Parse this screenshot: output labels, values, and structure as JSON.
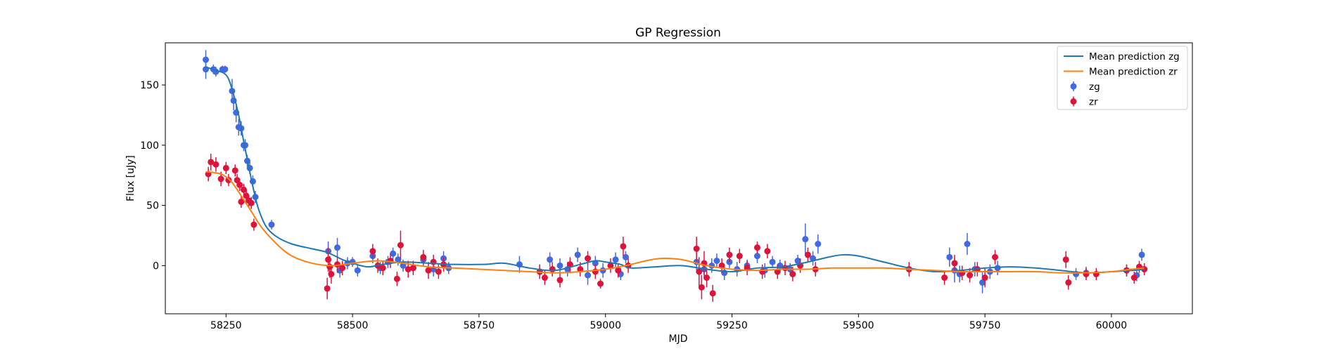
{
  "chart_data": {
    "type": "scatter",
    "title": "GP Regression",
    "xlabel": "MJD",
    "ylabel": "Flux [uJy]",
    "xlim": [
      58130,
      60160
    ],
    "ylim": [
      -40,
      185
    ],
    "xticks": [
      58250,
      58500,
      58750,
      59000,
      59250,
      59500,
      59750,
      60000
    ],
    "yticks": [
      0,
      50,
      100,
      150
    ],
    "grid": false,
    "legend_position": "top-right",
    "lines": [
      {
        "name": "Mean prediction zg",
        "color": "#1f77b4",
        "x": [
          58210,
          58230,
          58245,
          58255,
          58265,
          58275,
          58285,
          58295,
          58305,
          58315,
          58330,
          58350,
          58380,
          58420,
          58450,
          58480,
          58500,
          58530,
          58560,
          58600,
          58650,
          58700,
          58760,
          58800,
          58850,
          58900,
          58950,
          58980,
          59000,
          59030,
          59050,
          59100,
          59150,
          59200,
          59250,
          59300,
          59350,
          59400,
          59440,
          59470,
          59500,
          59550,
          59600,
          59650,
          59700,
          59750,
          59800,
          59850,
          59900,
          59950,
          60000,
          60040,
          60065
        ],
        "y": [
          165,
          162,
          160,
          155,
          142,
          125,
          103,
          82,
          62,
          46,
          32,
          24,
          18,
          14,
          11,
          5,
          2,
          -1,
          1,
          3,
          2,
          1,
          1,
          2,
          -2,
          -4,
          1,
          4,
          3,
          1,
          -2,
          -1,
          0,
          -3,
          -5,
          -2,
          -1,
          3,
          7,
          9,
          8,
          3,
          -2,
          -5,
          -4,
          -2,
          -1,
          -2,
          -4,
          -6,
          -5,
          -4,
          -3
        ]
      },
      {
        "name": "Mean prediction zr",
        "color": "#ff7f0e",
        "x": [
          58210,
          58240,
          58260,
          58280,
          58300,
          58320,
          58350,
          58380,
          58420,
          58460,
          58500,
          58550,
          58600,
          58650,
          58700,
          58750,
          58800,
          58850,
          58900,
          58950,
          59000,
          59040,
          59080,
          59110,
          59150,
          59200,
          59250,
          59300,
          59350,
          59400,
          59450,
          59500,
          59550,
          59600,
          59650,
          59700,
          59750,
          59800,
          59850,
          59900,
          59950,
          60000,
          60040,
          60065
        ],
        "y": [
          78,
          76,
          70,
          58,
          45,
          32,
          18,
          8,
          2,
          0,
          2,
          4,
          2,
          -1,
          -2,
          -3,
          -4,
          -5,
          -6,
          -5,
          -3,
          0,
          4,
          6,
          5,
          0,
          -3,
          -4,
          -3,
          -3,
          -2,
          -2,
          -2,
          -3,
          -4,
          -5,
          -5,
          -5,
          -5,
          -6,
          -6,
          -5,
          -3,
          -2
        ]
      }
    ],
    "series": [
      {
        "name": "zg",
        "color": "#4169e1",
        "points": [
          [
            58210,
            171,
            8
          ],
          [
            58210,
            163,
            8
          ],
          [
            58225,
            163,
            4
          ],
          [
            58230,
            161,
            4
          ],
          [
            58243,
            163,
            3
          ],
          [
            58248,
            163,
            3
          ],
          [
            58262,
            145,
            10
          ],
          [
            58265,
            137,
            8
          ],
          [
            58270,
            127,
            8
          ],
          [
            58275,
            115,
            7
          ],
          [
            58280,
            114,
            6
          ],
          [
            58285,
            100,
            5
          ],
          [
            58288,
            100,
            5
          ],
          [
            58292,
            87,
            5
          ],
          [
            58297,
            81,
            5
          ],
          [
            58303,
            70,
            5
          ],
          [
            58308,
            57,
            5
          ],
          [
            58340,
            34,
            4
          ],
          [
            58452,
            12,
            8
          ],
          [
            58470,
            15,
            8
          ],
          [
            58475,
            -4,
            6
          ],
          [
            58490,
            2,
            5
          ],
          [
            58500,
            3,
            4
          ],
          [
            58510,
            -4,
            5
          ],
          [
            58540,
            8,
            6
          ],
          [
            58555,
            -2,
            5
          ],
          [
            58570,
            3,
            5
          ],
          [
            58580,
            10,
            5
          ],
          [
            58590,
            5,
            5
          ],
          [
            58600,
            0,
            5
          ],
          [
            58620,
            -2,
            5
          ],
          [
            58640,
            5,
            6
          ],
          [
            58660,
            -3,
            6
          ],
          [
            58680,
            6,
            6
          ],
          [
            58690,
            -2,
            5
          ],
          [
            58830,
            1,
            7
          ],
          [
            58870,
            -5,
            6
          ],
          [
            58890,
            5,
            6
          ],
          [
            58910,
            0,
            6
          ],
          [
            58925,
            -3,
            6
          ],
          [
            58945,
            9,
            6
          ],
          [
            58965,
            -8,
            8
          ],
          [
            58980,
            2,
            6
          ],
          [
            58995,
            -4,
            6
          ],
          [
            59020,
            5,
            6
          ],
          [
            59030,
            -7,
            5
          ],
          [
            59040,
            7,
            5
          ],
          [
            59180,
            3,
            7
          ],
          [
            59195,
            -3,
            6
          ],
          [
            59210,
            0,
            6
          ],
          [
            59220,
            4,
            6
          ],
          [
            59235,
            -6,
            6
          ],
          [
            59245,
            3,
            5
          ],
          [
            59260,
            -3,
            6
          ],
          [
            59280,
            0,
            5
          ],
          [
            59300,
            8,
            6
          ],
          [
            59315,
            -4,
            6
          ],
          [
            59330,
            3,
            5
          ],
          [
            59345,
            0,
            5
          ],
          [
            59365,
            -3,
            5
          ],
          [
            59380,
            4,
            5
          ],
          [
            59395,
            22,
            13
          ],
          [
            59410,
            6,
            6
          ],
          [
            59420,
            18,
            8
          ],
          [
            59680,
            7,
            8
          ],
          [
            59690,
            -4,
            10
          ],
          [
            59700,
            -7,
            7
          ],
          [
            59715,
            18,
            9
          ],
          [
            59730,
            -3,
            6
          ],
          [
            59745,
            -14,
            9
          ],
          [
            59760,
            -5,
            6
          ],
          [
            59775,
            -2,
            6
          ],
          [
            59930,
            -7,
            5
          ],
          [
            59950,
            -6,
            5
          ],
          [
            60030,
            -4,
            5
          ],
          [
            60050,
            -8,
            5
          ],
          [
            60060,
            9,
            5
          ]
        ]
      },
      {
        "name": "zr",
        "color": "#dc143c",
        "points": [
          [
            58215,
            76,
            6
          ],
          [
            58220,
            86,
            7
          ],
          [
            58230,
            84,
            6
          ],
          [
            58240,
            72,
            6
          ],
          [
            58250,
            81,
            5
          ],
          [
            58255,
            71,
            5
          ],
          [
            58268,
            79,
            5
          ],
          [
            58272,
            71,
            5
          ],
          [
            58277,
            67,
            5
          ],
          [
            58280,
            53,
            5
          ],
          [
            58285,
            63,
            5
          ],
          [
            58290,
            58,
            5
          ],
          [
            58295,
            54,
            5
          ],
          [
            58300,
            52,
            5
          ],
          [
            58305,
            34,
            5
          ],
          [
            58450,
            -19,
            9
          ],
          [
            58452,
            5,
            10
          ],
          [
            58455,
            -1,
            9
          ],
          [
            58458,
            -7,
            8
          ],
          [
            58470,
            1,
            7
          ],
          [
            58480,
            -2,
            6
          ],
          [
            58540,
            12,
            6
          ],
          [
            58550,
            0,
            6
          ],
          [
            58560,
            -2,
            6
          ],
          [
            58575,
            4,
            6
          ],
          [
            58588,
            -11,
            6
          ],
          [
            58595,
            17,
            12
          ],
          [
            58610,
            -3,
            7
          ],
          [
            58620,
            -2,
            6
          ],
          [
            58640,
            7,
            6
          ],
          [
            58650,
            -4,
            7
          ],
          [
            58660,
            3,
            6
          ],
          [
            58670,
            -5,
            6
          ],
          [
            58680,
            1,
            6
          ],
          [
            58870,
            -5,
            6
          ],
          [
            58880,
            -10,
            6
          ],
          [
            58895,
            -3,
            6
          ],
          [
            58910,
            -12,
            6
          ],
          [
            58930,
            1,
            6
          ],
          [
            58950,
            -3,
            6
          ],
          [
            58965,
            6,
            6
          ],
          [
            58980,
            -5,
            6
          ],
          [
            58990,
            -15,
            4
          ],
          [
            59010,
            0,
            6
          ],
          [
            59025,
            -4,
            6
          ],
          [
            59035,
            16,
            8
          ],
          [
            59045,
            0,
            6
          ],
          [
            59180,
            14,
            10
          ],
          [
            59185,
            -5,
            12
          ],
          [
            59190,
            -18,
            10
          ],
          [
            59195,
            2,
            10
          ],
          [
            59200,
            -10,
            8
          ],
          [
            59212,
            -23,
            7
          ],
          [
            59230,
            0,
            6
          ],
          [
            59245,
            9,
            6
          ],
          [
            59265,
            8,
            6
          ],
          [
            59280,
            -2,
            6
          ],
          [
            59300,
            15,
            5
          ],
          [
            59310,
            -5,
            6
          ],
          [
            59320,
            12,
            6
          ],
          [
            59340,
            -5,
            6
          ],
          [
            59355,
            -2,
            6
          ],
          [
            59370,
            -7,
            6
          ],
          [
            59385,
            0,
            6
          ],
          [
            59400,
            9,
            6
          ],
          [
            59415,
            -3,
            6
          ],
          [
            59600,
            -3,
            6
          ],
          [
            59670,
            -10,
            6
          ],
          [
            59690,
            2,
            7
          ],
          [
            59705,
            -6,
            6
          ],
          [
            59720,
            -8,
            6
          ],
          [
            59735,
            -3,
            6
          ],
          [
            59750,
            -10,
            8
          ],
          [
            59770,
            7,
            6
          ],
          [
            59910,
            5,
            7
          ],
          [
            59915,
            -14,
            6
          ],
          [
            59950,
            -7,
            5
          ],
          [
            59970,
            -7,
            5
          ],
          [
            60030,
            -4,
            5
          ],
          [
            60045,
            -10,
            5
          ],
          [
            60055,
            -1,
            5
          ],
          [
            60065,
            -3,
            5
          ]
        ]
      }
    ]
  }
}
